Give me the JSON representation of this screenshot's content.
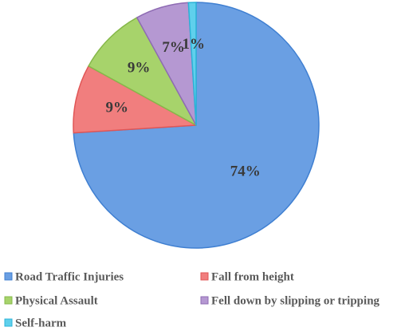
{
  "chart_data": {
    "type": "pie",
    "title": "",
    "start": "12 o'clock",
    "direction": "clockwise",
    "legend_position": "bottom",
    "slices": [
      {
        "label": "Road Traffic Injuries",
        "value": 74,
        "display": "74%",
        "color": "#6a9fe3",
        "stroke": "#3f7fd1"
      },
      {
        "label": "Fall from height",
        "value": 9,
        "display": "9%",
        "color": "#f17e7e",
        "stroke": "#e05656"
      },
      {
        "label": "Physical Assault",
        "value": 9,
        "display": "9%",
        "color": "#a7d36b",
        "stroke": "#86b84a"
      },
      {
        "label": "Fell down by slipping or tripping",
        "value": 7,
        "display": "7%",
        "color": "#b598d2",
        "stroke": "#8e6bb3"
      },
      {
        "label": "Self-harm",
        "value": 1,
        "display": "1%",
        "color": "#5fd0ec",
        "stroke": "#2bb3d8"
      }
    ]
  }
}
